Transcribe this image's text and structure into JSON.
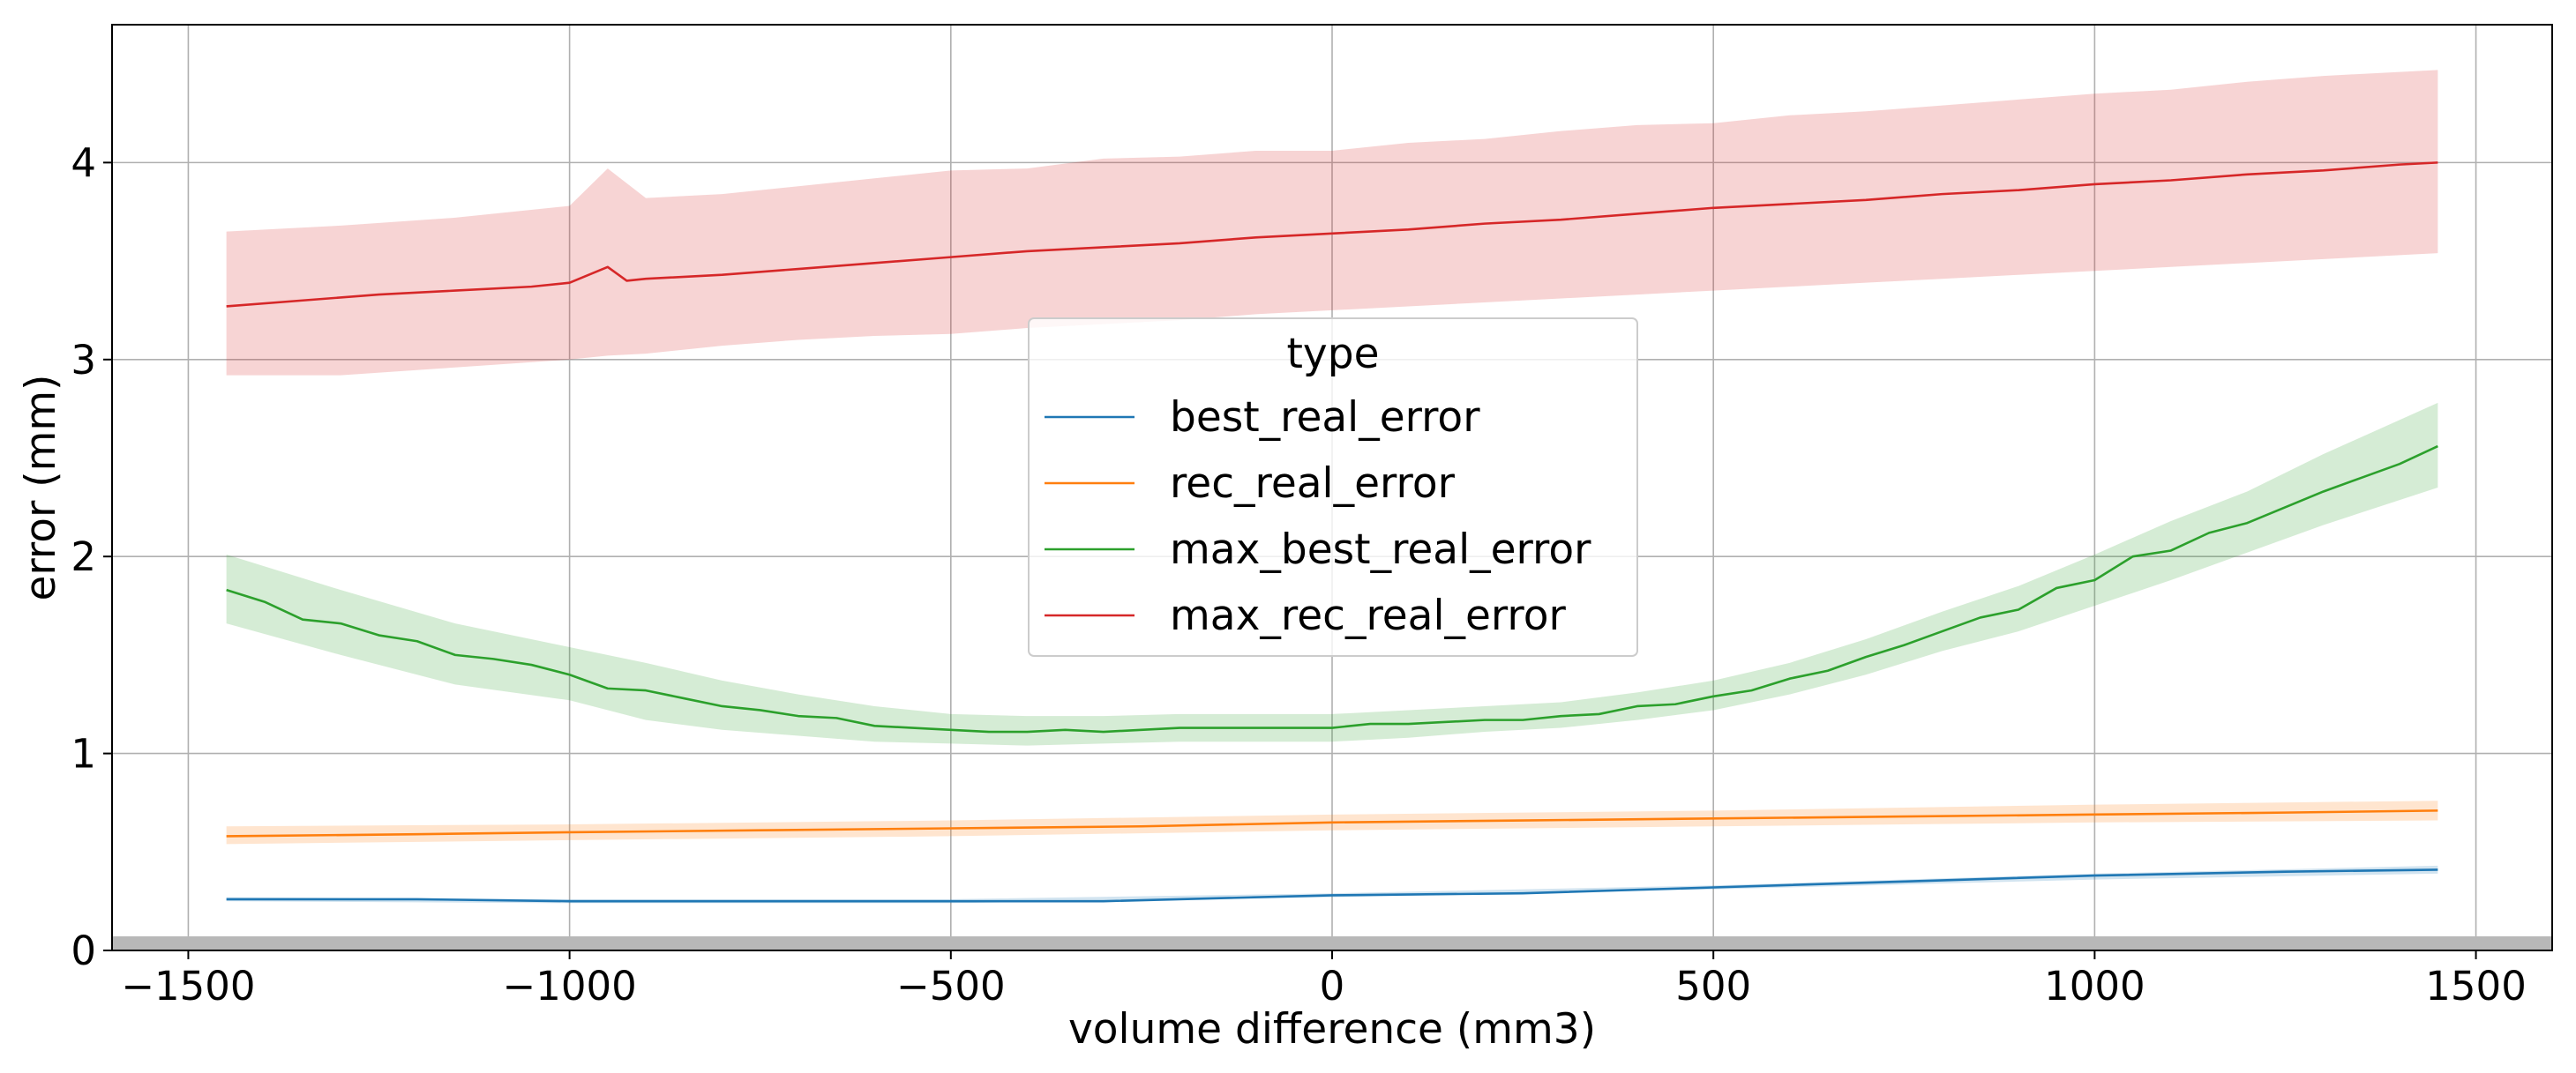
{
  "chart_data": {
    "type": "line",
    "title": "",
    "xlabel": "volume difference (mm3)",
    "ylabel": "error (mm)",
    "xlim": [
      -1600,
      1600
    ],
    "ylim": [
      0,
      4.7
    ],
    "xticks": [
      -1500,
      -1000,
      -500,
      0,
      500,
      1000,
      1500
    ],
    "xtick_labels": [
      "−1500",
      "−1000",
      "−500",
      "0",
      "500",
      "1000",
      "1500"
    ],
    "yticks": [
      0,
      1,
      2,
      3,
      4
    ],
    "ytick_labels": [
      "0",
      "1",
      "2",
      "3",
      "4"
    ],
    "grid": true,
    "legend": {
      "title": "type",
      "placement": "center"
    },
    "series": [
      {
        "name": "best_real_error",
        "color": "#1f77b4",
        "points": [
          [
            -1450,
            0.26
          ],
          [
            -1200,
            0.26
          ],
          [
            -1000,
            0.25
          ],
          [
            -800,
            0.25
          ],
          [
            -500,
            0.25
          ],
          [
            -300,
            0.25
          ],
          [
            0,
            0.28
          ],
          [
            250,
            0.29
          ],
          [
            500,
            0.32
          ],
          [
            750,
            0.35
          ],
          [
            1000,
            0.38
          ],
          [
            1250,
            0.4
          ],
          [
            1450,
            0.41
          ]
        ],
        "band": [
          [
            -1450,
            0.25,
            0.27
          ],
          [
            -1000,
            0.24,
            0.26
          ],
          [
            -500,
            0.24,
            0.26
          ],
          [
            0,
            0.27,
            0.29
          ],
          [
            500,
            0.31,
            0.33
          ],
          [
            1000,
            0.36,
            0.39
          ],
          [
            1450,
            0.39,
            0.43
          ]
        ]
      },
      {
        "name": "rec_real_error",
        "color": "#ff7f0e",
        "points": [
          [
            -1450,
            0.58
          ],
          [
            -1200,
            0.59
          ],
          [
            -1000,
            0.6
          ],
          [
            -750,
            0.61
          ],
          [
            -500,
            0.62
          ],
          [
            -250,
            0.63
          ],
          [
            0,
            0.65
          ],
          [
            250,
            0.66
          ],
          [
            500,
            0.67
          ],
          [
            750,
            0.68
          ],
          [
            1000,
            0.69
          ],
          [
            1250,
            0.7
          ],
          [
            1450,
            0.71
          ]
        ],
        "band": [
          [
            -1450,
            0.54,
            0.63
          ],
          [
            -1000,
            0.56,
            0.64
          ],
          [
            -500,
            0.58,
            0.66
          ],
          [
            0,
            0.61,
            0.69
          ],
          [
            500,
            0.63,
            0.71
          ],
          [
            1000,
            0.65,
            0.74
          ],
          [
            1450,
            0.66,
            0.76
          ]
        ]
      },
      {
        "name": "max_best_real_error",
        "color": "#2ca02c",
        "points": [
          [
            -1450,
            1.83
          ],
          [
            -1400,
            1.77
          ],
          [
            -1350,
            1.68
          ],
          [
            -1300,
            1.66
          ],
          [
            -1250,
            1.6
          ],
          [
            -1200,
            1.57
          ],
          [
            -1150,
            1.5
          ],
          [
            -1100,
            1.48
          ],
          [
            -1050,
            1.45
          ],
          [
            -1000,
            1.4
          ],
          [
            -950,
            1.33
          ],
          [
            -900,
            1.32
          ],
          [
            -850,
            1.28
          ],
          [
            -800,
            1.24
          ],
          [
            -750,
            1.22
          ],
          [
            -700,
            1.19
          ],
          [
            -650,
            1.18
          ],
          [
            -600,
            1.14
          ],
          [
            -550,
            1.13
          ],
          [
            -500,
            1.12
          ],
          [
            -450,
            1.11
          ],
          [
            -400,
            1.11
          ],
          [
            -350,
            1.12
          ],
          [
            -300,
            1.11
          ],
          [
            -250,
            1.12
          ],
          [
            -200,
            1.13
          ],
          [
            -150,
            1.13
          ],
          [
            -100,
            1.13
          ],
          [
            -50,
            1.13
          ],
          [
            0,
            1.13
          ],
          [
            50,
            1.15
          ],
          [
            100,
            1.15
          ],
          [
            150,
            1.16
          ],
          [
            200,
            1.17
          ],
          [
            250,
            1.17
          ],
          [
            300,
            1.19
          ],
          [
            350,
            1.2
          ],
          [
            400,
            1.24
          ],
          [
            450,
            1.25
          ],
          [
            500,
            1.29
          ],
          [
            550,
            1.32
          ],
          [
            600,
            1.38
          ],
          [
            650,
            1.42
          ],
          [
            700,
            1.49
          ],
          [
            750,
            1.55
          ],
          [
            800,
            1.62
          ],
          [
            850,
            1.69
          ],
          [
            900,
            1.73
          ],
          [
            950,
            1.84
          ],
          [
            1000,
            1.88
          ],
          [
            1050,
            2.0
          ],
          [
            1100,
            2.03
          ],
          [
            1150,
            2.12
          ],
          [
            1200,
            2.17
          ],
          [
            1250,
            2.25
          ],
          [
            1300,
            2.33
          ],
          [
            1350,
            2.4
          ],
          [
            1400,
            2.47
          ],
          [
            1450,
            2.56
          ]
        ],
        "band": [
          [
            -1450,
            1.66,
            2.01
          ],
          [
            -1300,
            1.5,
            1.83
          ],
          [
            -1150,
            1.35,
            1.66
          ],
          [
            -1000,
            1.27,
            1.54
          ],
          [
            -900,
            1.17,
            1.46
          ],
          [
            -800,
            1.12,
            1.37
          ],
          [
            -700,
            1.09,
            1.3
          ],
          [
            -600,
            1.06,
            1.24
          ],
          [
            -500,
            1.05,
            1.2
          ],
          [
            -400,
            1.04,
            1.19
          ],
          [
            -300,
            1.05,
            1.19
          ],
          [
            -200,
            1.06,
            1.2
          ],
          [
            -100,
            1.06,
            1.2
          ],
          [
            0,
            1.06,
            1.2
          ],
          [
            100,
            1.08,
            1.22
          ],
          [
            200,
            1.11,
            1.24
          ],
          [
            300,
            1.13,
            1.26
          ],
          [
            400,
            1.17,
            1.31
          ],
          [
            500,
            1.22,
            1.37
          ],
          [
            600,
            1.3,
            1.46
          ],
          [
            700,
            1.4,
            1.58
          ],
          [
            800,
            1.52,
            1.72
          ],
          [
            900,
            1.62,
            1.85
          ],
          [
            1000,
            1.75,
            2.01
          ],
          [
            1100,
            1.88,
            2.18
          ],
          [
            1200,
            2.02,
            2.33
          ],
          [
            1300,
            2.16,
            2.52
          ],
          [
            1450,
            2.35,
            2.78
          ]
        ]
      },
      {
        "name": "max_rec_real_error",
        "color": "#d62728",
        "points": [
          [
            -1450,
            3.27
          ],
          [
            -1350,
            3.3
          ],
          [
            -1250,
            3.33
          ],
          [
            -1150,
            3.35
          ],
          [
            -1050,
            3.37
          ],
          [
            -1000,
            3.39
          ],
          [
            -950,
            3.47
          ],
          [
            -925,
            3.4
          ],
          [
            -900,
            3.41
          ],
          [
            -800,
            3.43
          ],
          [
            -700,
            3.46
          ],
          [
            -600,
            3.49
          ],
          [
            -500,
            3.52
          ],
          [
            -400,
            3.55
          ],
          [
            -300,
            3.57
          ],
          [
            -200,
            3.59
          ],
          [
            -100,
            3.62
          ],
          [
            0,
            3.64
          ],
          [
            100,
            3.66
          ],
          [
            200,
            3.69
          ],
          [
            300,
            3.71
          ],
          [
            400,
            3.74
          ],
          [
            500,
            3.77
          ],
          [
            600,
            3.79
          ],
          [
            700,
            3.81
          ],
          [
            800,
            3.84
          ],
          [
            900,
            3.86
          ],
          [
            1000,
            3.89
          ],
          [
            1100,
            3.91
          ],
          [
            1200,
            3.94
          ],
          [
            1300,
            3.96
          ],
          [
            1400,
            3.99
          ],
          [
            1450,
            4.0
          ]
        ],
        "band": [
          [
            -1450,
            2.92,
            3.65
          ],
          [
            -1300,
            2.92,
            3.68
          ],
          [
            -1150,
            2.96,
            3.72
          ],
          [
            -1000,
            3.0,
            3.78
          ],
          [
            -950,
            3.02,
            3.97
          ],
          [
            -900,
            3.03,
            3.82
          ],
          [
            -800,
            3.07,
            3.84
          ],
          [
            -700,
            3.1,
            3.88
          ],
          [
            -600,
            3.12,
            3.92
          ],
          [
            -500,
            3.13,
            3.96
          ],
          [
            -400,
            3.16,
            3.97
          ],
          [
            -300,
            3.18,
            4.02
          ],
          [
            -200,
            3.2,
            4.03
          ],
          [
            -100,
            3.23,
            4.06
          ],
          [
            0,
            3.25,
            4.06
          ],
          [
            100,
            3.27,
            4.1
          ],
          [
            200,
            3.29,
            4.12
          ],
          [
            300,
            3.31,
            4.16
          ],
          [
            400,
            3.33,
            4.19
          ],
          [
            500,
            3.35,
            4.2
          ],
          [
            600,
            3.37,
            4.24
          ],
          [
            700,
            3.39,
            4.26
          ],
          [
            800,
            3.41,
            4.29
          ],
          [
            900,
            3.43,
            4.32
          ],
          [
            1000,
            3.45,
            4.35
          ],
          [
            1100,
            3.47,
            4.37
          ],
          [
            1200,
            3.49,
            4.41
          ],
          [
            1300,
            3.51,
            4.44
          ],
          [
            1450,
            3.54,
            4.47
          ]
        ]
      }
    ]
  }
}
